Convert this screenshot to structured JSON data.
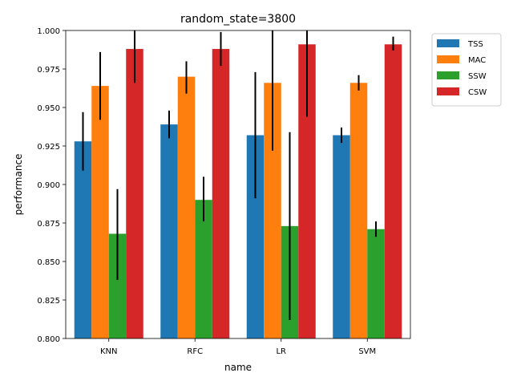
{
  "chart_data": {
    "type": "bar",
    "title": "random_state=3800",
    "xlabel": "name",
    "ylabel": "performance",
    "categories": [
      "KNN",
      "RFC",
      "LR",
      "SVM"
    ],
    "ylim": [
      0.8,
      1.0
    ],
    "yticks": [
      "0.800",
      "0.825",
      "0.850",
      "0.875",
      "0.900",
      "0.925",
      "0.950",
      "0.975",
      "1.000"
    ],
    "grid": false,
    "legend_position": "outside upper right",
    "series": [
      {
        "name": "TSS",
        "color": "#1f77b4",
        "values": [
          0.928,
          0.939,
          0.932,
          0.932
        ],
        "err_low": [
          0.909,
          0.93,
          0.891,
          0.927
        ],
        "err_high": [
          0.947,
          0.948,
          0.973,
          0.937
        ]
      },
      {
        "name": "MAC",
        "color": "#ff7f0e",
        "values": [
          0.964,
          0.97,
          0.966,
          0.966
        ],
        "err_low": [
          0.942,
          0.959,
          0.922,
          0.961
        ],
        "err_high": [
          0.986,
          0.98,
          1.01,
          0.971
        ]
      },
      {
        "name": "SSW",
        "color": "#2ca02c",
        "values": [
          0.868,
          0.89,
          0.873,
          0.871
        ],
        "err_low": [
          0.838,
          0.876,
          0.812,
          0.866
        ],
        "err_high": [
          0.897,
          0.905,
          0.934,
          0.876
        ]
      },
      {
        "name": "CSW",
        "color": "#d62728",
        "values": [
          0.988,
          0.988,
          0.991,
          0.991
        ],
        "err_low": [
          0.966,
          0.977,
          0.944,
          0.987
        ],
        "err_high": [
          1.01,
          0.999,
          1.01,
          0.996
        ]
      }
    ]
  }
}
